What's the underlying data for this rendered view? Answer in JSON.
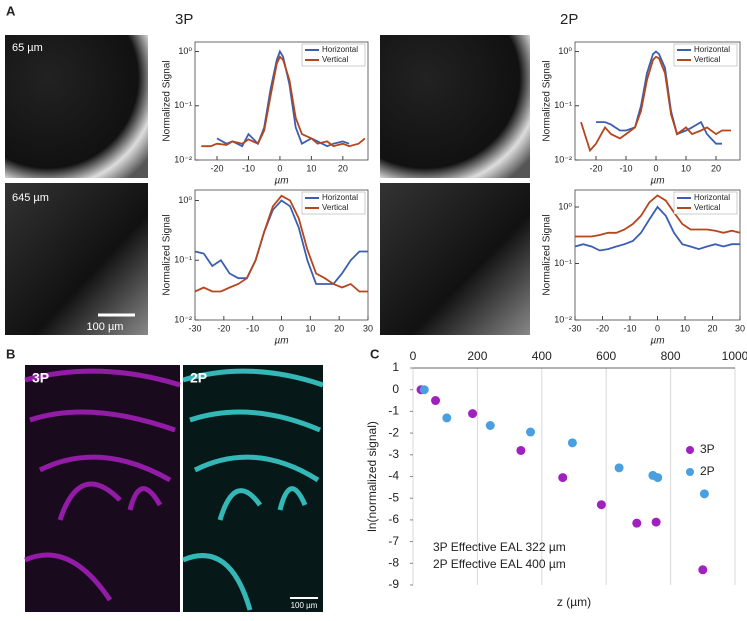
{
  "figure": {
    "panel_labels": [
      "A",
      "B",
      "C"
    ],
    "a_headers": [
      "3P",
      "2P"
    ],
    "a_depths": [
      "65 µm",
      "645 µm"
    ],
    "a_scale": "100 µm",
    "b_labels": [
      "3P",
      "2P"
    ],
    "b_scale": "100 µm"
  },
  "chart_data": [
    {
      "type": "line",
      "ylabel": "Normalized Signal",
      "xlabel": "µm",
      "log_y": true,
      "legend": "upper right",
      "x": [
        -25,
        -22,
        -20,
        -17,
        -15,
        -12,
        -10,
        -7,
        -5,
        -3,
        -1,
        0,
        1,
        3,
        5,
        7,
        10,
        12,
        15,
        17,
        20,
        22,
        25,
        27
      ],
      "series": [
        {
          "name": "Horizontal",
          "color": "#3a5fb0",
          "values": [
            null,
            null,
            0.025,
            0.02,
            0.022,
            0.018,
            0.03,
            0.02,
            0.04,
            0.2,
            0.7,
            1.0,
            0.8,
            0.25,
            0.04,
            0.02,
            0.025,
            0.022,
            0.018,
            0.02,
            0.022,
            0.02,
            null,
            null
          ]
        },
        {
          "name": "Vertical",
          "color": "#b5461d",
          "values": [
            0.018,
            0.018,
            0.02,
            0.019,
            0.022,
            0.02,
            0.024,
            0.02,
            0.035,
            0.15,
            0.6,
            0.8,
            0.7,
            0.3,
            0.06,
            0.03,
            0.025,
            0.02,
            0.022,
            0.018,
            0.02,
            0.018,
            0.02,
            0.025
          ]
        }
      ],
      "xlim": [
        -27,
        28
      ],
      "xticks": [
        -20,
        -10,
        0,
        10,
        20
      ],
      "ylim": [
        0.01,
        1.5
      ],
      "yticks": [
        {
          "value": 0.01,
          "label": "10⁻²"
        },
        {
          "value": 0.1,
          "label": "10⁻¹"
        },
        {
          "value": 1,
          "label": "10⁰"
        }
      ]
    },
    {
      "type": "line",
      "ylabel": "Normalized Signal",
      "xlabel": "µm",
      "log_y": true,
      "legend": "upper right",
      "x": [
        -30,
        -27,
        -24,
        -21,
        -18,
        -15,
        -12,
        -9,
        -6,
        -3,
        0,
        3,
        6,
        9,
        12,
        15,
        18,
        21,
        24,
        27,
        30
      ],
      "series": [
        {
          "name": "Horizontal",
          "color": "#3a5fb0",
          "values": [
            0.14,
            0.13,
            0.08,
            0.1,
            0.06,
            0.05,
            0.05,
            0.1,
            0.3,
            0.7,
            1.0,
            0.8,
            0.35,
            0.1,
            0.04,
            0.04,
            0.04,
            0.06,
            0.1,
            0.14,
            0.14
          ]
        },
        {
          "name": "Vertical",
          "color": "#b5461d",
          "values": [
            0.03,
            0.035,
            0.03,
            0.03,
            0.035,
            0.04,
            0.05,
            0.1,
            0.3,
            0.8,
            1.2,
            1.0,
            0.5,
            0.15,
            0.06,
            0.05,
            0.04,
            0.035,
            0.04,
            0.03,
            0.03
          ]
        }
      ],
      "xlim": [
        -30,
        30
      ],
      "xticks": [
        -30,
        -20,
        -10,
        0,
        10,
        20,
        30
      ],
      "ylim": [
        0.01,
        1.5
      ],
      "yticks": [
        {
          "value": 0.01,
          "label": "10⁻²"
        },
        {
          "value": 0.1,
          "label": "10⁻¹"
        },
        {
          "value": 1,
          "label": "10⁰"
        }
      ]
    },
    {
      "type": "line",
      "ylabel": "Normalized Signal",
      "xlabel": "µm",
      "log_y": true,
      "legend": "upper right",
      "x": [
        -25,
        -22,
        -20,
        -17,
        -15,
        -12,
        -10,
        -7,
        -5,
        -3,
        -1,
        0,
        1,
        3,
        5,
        7,
        10,
        12,
        15,
        17,
        20,
        22,
        25,
        27
      ],
      "series": [
        {
          "name": "Horizontal",
          "color": "#3a5fb0",
          "values": [
            null,
            null,
            0.05,
            0.05,
            0.045,
            0.035,
            0.035,
            0.04,
            0.1,
            0.4,
            0.9,
            1.0,
            0.9,
            0.5,
            0.08,
            0.03,
            0.035,
            0.04,
            0.05,
            0.03,
            0.02,
            0.02,
            null,
            null
          ]
        },
        {
          "name": "Vertical",
          "color": "#b5461d",
          "values": [
            0.05,
            0.015,
            0.02,
            0.04,
            0.03,
            0.025,
            0.03,
            0.04,
            0.08,
            0.3,
            0.7,
            0.8,
            0.75,
            0.4,
            0.07,
            0.03,
            0.04,
            0.03,
            0.035,
            0.04,
            0.03,
            0.035,
            0.035,
            null
          ]
        }
      ],
      "xlim": [
        -27,
        28
      ],
      "xticks": [
        -20,
        -10,
        0,
        10,
        20
      ],
      "ylim": [
        0.01,
        1.5
      ],
      "yticks": [
        {
          "value": 0.01,
          "label": "10⁻²"
        },
        {
          "value": 0.1,
          "label": "10⁻¹"
        },
        {
          "value": 1,
          "label": "10⁰"
        }
      ]
    },
    {
      "type": "line",
      "ylabel": "Normalized Signal",
      "xlabel": "µm",
      "log_y": true,
      "legend": "upper right",
      "x": [
        -30,
        -27,
        -24,
        -21,
        -18,
        -15,
        -12,
        -9,
        -6,
        -3,
        0,
        3,
        6,
        9,
        12,
        15,
        18,
        21,
        24,
        27,
        30
      ],
      "series": [
        {
          "name": "Horizontal",
          "color": "#3a5fb0",
          "values": [
            0.2,
            0.22,
            0.2,
            0.17,
            0.18,
            0.2,
            0.22,
            0.25,
            0.35,
            0.6,
            1.0,
            0.7,
            0.35,
            0.22,
            0.2,
            0.18,
            0.2,
            0.22,
            0.2,
            0.22,
            0.22
          ]
        },
        {
          "name": "Vertical",
          "color": "#b5461d",
          "values": [
            0.3,
            0.3,
            0.3,
            0.32,
            0.35,
            0.35,
            0.4,
            0.5,
            0.7,
            1.2,
            1.6,
            1.3,
            0.8,
            0.5,
            0.4,
            0.4,
            0.4,
            0.38,
            0.35,
            0.38,
            0.35
          ]
        }
      ],
      "xlim": [
        -30,
        30
      ],
      "xticks": [
        -30,
        -20,
        -10,
        0,
        10,
        20,
        30
      ],
      "ylim": [
        0.01,
        2
      ],
      "yticks": [
        {
          "value": 0.01,
          "label": "10⁻²"
        },
        {
          "value": 0.1,
          "label": "10⁻¹"
        },
        {
          "value": 1,
          "label": "10⁰"
        }
      ]
    },
    {
      "type": "scatter",
      "xlabel": "z (µm)",
      "ylabel": "ln(normalized signal)",
      "grid": true,
      "legend": "right",
      "annotations": [
        "3P Effective EAL 322 µm",
        "2P Effective EAL 400 µm"
      ],
      "series": [
        {
          "name": "3P",
          "color": "#a020c0",
          "x": [
            25,
            70,
            185,
            335,
            465,
            585,
            695,
            755,
            900
          ],
          "values": [
            0,
            -0.5,
            -1.1,
            -2.8,
            -4.05,
            -5.3,
            -6.15,
            -6.1,
            -8.3
          ]
        },
        {
          "name": "2P",
          "color": "#4a9fe0",
          "x": [
            35,
            105,
            240,
            365,
            495,
            640,
            745,
            760,
            905
          ],
          "values": [
            0,
            -1.3,
            -1.65,
            -1.95,
            -2.45,
            -3.6,
            -3.95,
            -4.05,
            -4.8
          ]
        }
      ],
      "xlim": [
        0,
        1000
      ],
      "xticks": [
        0,
        200,
        400,
        600,
        800,
        1000
      ],
      "ylim": [
        -9,
        1
      ],
      "yticks": [
        1,
        0,
        -1,
        -2,
        -3,
        -4,
        -5,
        -6,
        -7,
        -8,
        -9
      ]
    }
  ]
}
